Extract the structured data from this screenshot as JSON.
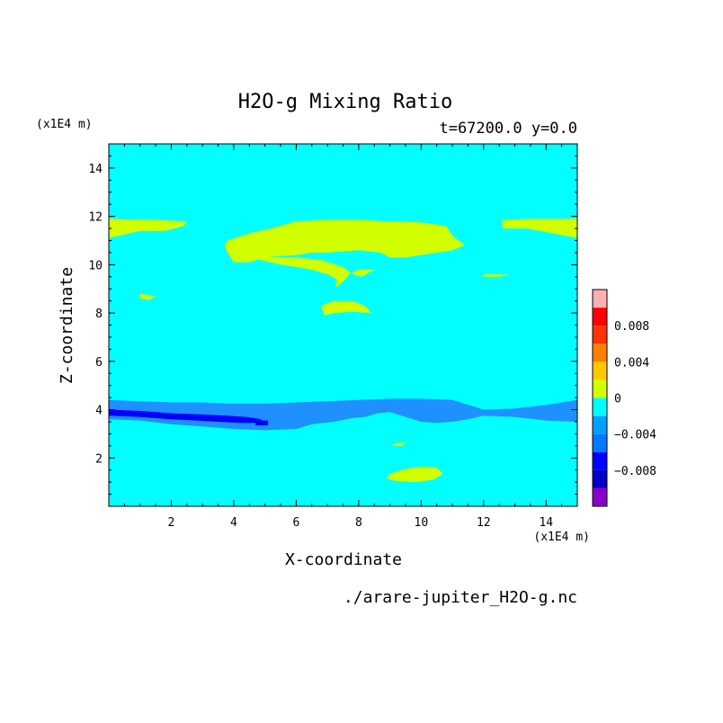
{
  "chart_data": {
    "type": "heatmap",
    "title": "H2O-g Mixing Ratio",
    "subtitle": "t=67200.0 y=0.0",
    "xlabel": "X-coordinate",
    "ylabel": "Z-coordinate",
    "x_unit": "(x1E4 m)",
    "y_unit": "(x1E4 m)",
    "xlim": [
      0,
      15
    ],
    "ylim": [
      0,
      15
    ],
    "x_ticks": [
      2,
      4,
      6,
      8,
      10,
      12,
      14
    ],
    "y_ticks": [
      2,
      4,
      6,
      8,
      10,
      12,
      14
    ],
    "x_tick_labels": [
      "2",
      "4",
      "6",
      "8",
      "10",
      "12",
      "14"
    ],
    "y_tick_labels": [
      "2",
      "4",
      "6",
      "8",
      "10",
      "12",
      "14"
    ],
    "background_level_color": "#00ffff",
    "colorbar": {
      "levels": [
        -0.01,
        -0.008,
        -0.006,
        -0.004,
        -0.002,
        0,
        0.002,
        0.004,
        0.006,
        0.008,
        0.01
      ],
      "colors": [
        "#8b00c8",
        "#0000c8",
        "#0000ff",
        "#0078ff",
        "#00a0ff",
        "#00ffff",
        "#d2ff00",
        "#ffc800",
        "#ff8000",
        "#ff3200",
        "#ff0000",
        "#ffafaf"
      ],
      "tick_values": [
        0.008,
        0.004,
        0,
        -0.004,
        -0.008
      ],
      "tick_labels": [
        "0.008",
        "0.004",
        "0",
        "−0.004",
        "−0.008"
      ]
    },
    "regions": [
      {
        "level": "mid_blue",
        "color": "#1e90ff",
        "points": [
          [
            0,
            4.4
          ],
          [
            1,
            4.35
          ],
          [
            2,
            4.3
          ],
          [
            3,
            4.3
          ],
          [
            4,
            4.25
          ],
          [
            5,
            4.25
          ],
          [
            6,
            4.3
          ],
          [
            7,
            4.35
          ],
          [
            8,
            4.4
          ],
          [
            9,
            4.45
          ],
          [
            10,
            4.45
          ],
          [
            11,
            4.4
          ],
          [
            12,
            4.0
          ],
          [
            13,
            4.05
          ],
          [
            14,
            4.2
          ],
          [
            15,
            4.4
          ],
          [
            15,
            3.5
          ],
          [
            14,
            3.55
          ],
          [
            13,
            3.7
          ],
          [
            12,
            3.75
          ],
          [
            11.5,
            3.6
          ],
          [
            11,
            3.5
          ],
          [
            10.5,
            3.45
          ],
          [
            10,
            3.5
          ],
          [
            9.5,
            3.7
          ],
          [
            9,
            3.9
          ],
          [
            8.6,
            3.85
          ],
          [
            8.2,
            3.7
          ],
          [
            7.8,
            3.65
          ],
          [
            7.2,
            3.5
          ],
          [
            6.5,
            3.4
          ],
          [
            6,
            3.2
          ],
          [
            5,
            3.15
          ],
          [
            4,
            3.2
          ],
          [
            3,
            3.3
          ],
          [
            2,
            3.4
          ],
          [
            1,
            3.55
          ],
          [
            0,
            3.6
          ]
        ]
      },
      {
        "level": "dark_blue",
        "color": "#0000ff",
        "points": [
          [
            0,
            4.0
          ],
          [
            1,
            3.95
          ],
          [
            2,
            3.85
          ],
          [
            3,
            3.8
          ],
          [
            3.8,
            3.75
          ],
          [
            4.4,
            3.7
          ],
          [
            4.9,
            3.6
          ],
          [
            4.8,
            3.45
          ],
          [
            4.2,
            3.45
          ],
          [
            3.5,
            3.5
          ],
          [
            2.8,
            3.55
          ],
          [
            2,
            3.6
          ],
          [
            1,
            3.7
          ],
          [
            0,
            3.75
          ]
        ]
      },
      {
        "level": "dark_blue_spot",
        "color": "#0000ff",
        "points": [
          [
            4.7,
            3.55
          ],
          [
            5.1,
            3.55
          ],
          [
            5.1,
            3.35
          ],
          [
            4.7,
            3.35
          ]
        ]
      },
      {
        "level": "yellow_upper_left",
        "color": "#d2ff00",
        "points": [
          [
            0,
            11.9
          ],
          [
            1.5,
            11.85
          ],
          [
            2.5,
            11.8
          ],
          [
            2.4,
            11.6
          ],
          [
            1.8,
            11.4
          ],
          [
            1,
            11.4
          ],
          [
            0,
            11.1
          ]
        ]
      },
      {
        "level": "yellow_upper_right",
        "color": "#d2ff00",
        "points": [
          [
            12.6,
            11.85
          ],
          [
            13.5,
            11.9
          ],
          [
            15,
            11.9
          ],
          [
            15,
            11.1
          ],
          [
            14.2,
            11.3
          ],
          [
            13.4,
            11.5
          ],
          [
            12.6,
            11.5
          ]
        ]
      },
      {
        "level": "yellow_center",
        "color": "#d2ff00",
        "points": [
          [
            3.8,
            11.0
          ],
          [
            4.5,
            11.3
          ],
          [
            5.2,
            11.5
          ],
          [
            6,
            11.8
          ],
          [
            7,
            11.85
          ],
          [
            8,
            11.85
          ],
          [
            9,
            11.8
          ],
          [
            10,
            11.75
          ],
          [
            10.8,
            11.6
          ],
          [
            11.0,
            11.2
          ],
          [
            11.4,
            10.8
          ],
          [
            11.0,
            10.6
          ],
          [
            10.5,
            10.5
          ],
          [
            10,
            10.4
          ],
          [
            9.5,
            10.3
          ],
          [
            9,
            10.3
          ],
          [
            8.7,
            10.5
          ],
          [
            8,
            10.6
          ],
          [
            7.5,
            10.55
          ],
          [
            7,
            10.5
          ],
          [
            6.5,
            10.5
          ],
          [
            6,
            10.4
          ],
          [
            5.5,
            10.35
          ],
          [
            5,
            10.3
          ],
          [
            4.5,
            10.1
          ],
          [
            4,
            10.1
          ],
          [
            3.8,
            10.5
          ],
          [
            3.7,
            10.8
          ]
        ]
      },
      {
        "level": "yellow_center_tail",
        "color": "#d2ff00",
        "points": [
          [
            4.5,
            10.3
          ],
          [
            5,
            10.15
          ],
          [
            5.5,
            10.0
          ],
          [
            6,
            9.9
          ],
          [
            6.5,
            9.8
          ],
          [
            7,
            9.6
          ],
          [
            7.3,
            9.4
          ],
          [
            7.25,
            9.05
          ],
          [
            7.5,
            9.3
          ],
          [
            7.7,
            9.6
          ],
          [
            8,
            9.8
          ],
          [
            8.5,
            9.8
          ],
          [
            8.1,
            9.5
          ],
          [
            7.8,
            9.6
          ],
          [
            7.5,
            9.9
          ],
          [
            6.8,
            10.2
          ],
          [
            6,
            10.3
          ],
          [
            5.3,
            10.3
          ]
        ]
      },
      {
        "level": "yellow_small_ne",
        "color": "#d2ff00",
        "points": [
          [
            12,
            9.6
          ],
          [
            12.8,
            9.6
          ],
          [
            12.5,
            9.5
          ],
          [
            12,
            9.5
          ]
        ]
      },
      {
        "level": "yellow_small_left",
        "color": "#d2ff00",
        "points": [
          [
            1.0,
            8.8
          ],
          [
            1.5,
            8.7
          ],
          [
            1.3,
            8.55
          ],
          [
            1.0,
            8.6
          ]
        ]
      },
      {
        "level": "yellow_mid",
        "color": "#d2ff00",
        "points": [
          [
            6.8,
            8.3
          ],
          [
            7.2,
            8.5
          ],
          [
            7.8,
            8.5
          ],
          [
            8.2,
            8.3
          ],
          [
            8.4,
            8.0
          ],
          [
            7.8,
            8.05
          ],
          [
            7.2,
            8.0
          ],
          [
            6.9,
            7.9
          ]
        ]
      },
      {
        "level": "yellow_bottom",
        "color": "#d2ff00",
        "points": [
          [
            9.0,
            1.35
          ],
          [
            9.5,
            1.55
          ],
          [
            10.1,
            1.65
          ],
          [
            10.5,
            1.6
          ],
          [
            10.7,
            1.35
          ],
          [
            10.4,
            1.1
          ],
          [
            9.8,
            1.0
          ],
          [
            9.2,
            1.05
          ],
          [
            8.9,
            1.15
          ]
        ]
      },
      {
        "level": "yellow_bottom_tiny",
        "color": "#d2ff00",
        "points": [
          [
            9.1,
            2.6
          ],
          [
            9.5,
            2.65
          ],
          [
            9.4,
            2.5
          ],
          [
            9.1,
            2.5
          ]
        ]
      }
    ]
  },
  "footer": {
    "filename": "./arare-jupiter_H2O-g.nc"
  }
}
